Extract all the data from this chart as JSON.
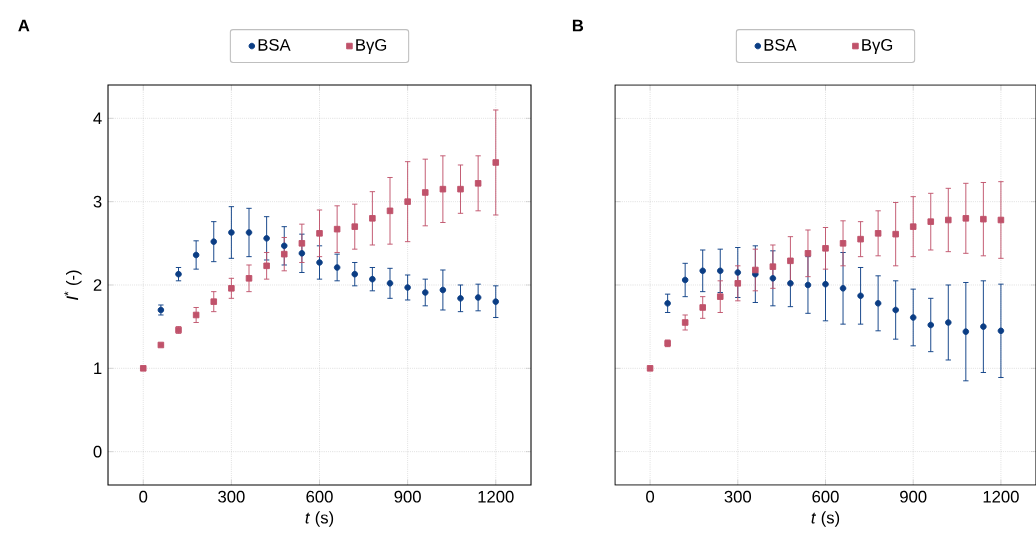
{
  "chart_data": [
    {
      "type": "scatter",
      "title": "A",
      "xlabel": "*t* (s)",
      "ylabel": "*I*$^{*}$ (-)",
      "x": [
        0,
        60,
        120,
        180,
        240,
        300,
        360,
        420,
        480,
        540,
        600,
        660,
        720,
        780,
        840,
        900,
        960,
        1020,
        1080,
        1140,
        1200
      ],
      "series": [
        {
          "name": "BSA",
          "color": "#0b3d84",
          "marker": "circle",
          "values": [
            null,
            1.7,
            2.13,
            2.36,
            2.52,
            2.63,
            2.63,
            2.56,
            2.47,
            2.38,
            2.27,
            2.21,
            2.13,
            2.07,
            2.02,
            1.97,
            1.91,
            1.94,
            1.84,
            1.85,
            1.8
          ],
          "errors": [
            null,
            0.06,
            0.08,
            0.17,
            0.24,
            0.31,
            0.29,
            0.26,
            0.23,
            0.23,
            0.2,
            0.16,
            0.14,
            0.14,
            0.18,
            0.15,
            0.16,
            0.24,
            0.16,
            0.16,
            0.19
          ]
        },
        {
          "name": "BγG",
          "color": "#c0526a",
          "marker": "square",
          "values": [
            1.0,
            1.28,
            1.46,
            1.64,
            1.8,
            1.96,
            2.08,
            2.23,
            2.37,
            2.5,
            2.62,
            2.67,
            2.7,
            2.8,
            2.89,
            3.0,
            3.11,
            3.15,
            3.15,
            3.22,
            3.47
          ],
          "errors": [
            null,
            null,
            0.04,
            0.09,
            0.12,
            0.12,
            0.16,
            0.16,
            0.2,
            0.23,
            0.28,
            0.28,
            0.27,
            0.32,
            0.4,
            0.48,
            0.4,
            0.4,
            0.29,
            0.33,
            0.63
          ]
        }
      ],
      "xlim": [
        -120,
        1320
      ],
      "xticks": [
        0,
        300,
        600,
        900,
        1200
      ],
      "ylim": [
        -0.4,
        4.4
      ],
      "yticks": [
        0,
        1,
        2,
        3,
        4
      ],
      "grid": true,
      "legend": "top",
      "line_style": "none"
    },
    {
      "type": "scatter",
      "title": "B",
      "xlabel": "*t* (s)",
      "x": [
        0,
        60,
        120,
        180,
        240,
        300,
        360,
        420,
        480,
        540,
        600,
        660,
        720,
        780,
        840,
        900,
        960,
        1020,
        1080,
        1140,
        1200
      ],
      "series": [
        {
          "name": "BSA",
          "color": "#0b3d84",
          "marker": "circle",
          "values": [
            null,
            1.78,
            2.06,
            2.17,
            2.17,
            2.15,
            2.13,
            2.08,
            2.02,
            2.0,
            2.01,
            1.96,
            1.87,
            1.78,
            1.7,
            1.61,
            1.52,
            1.55,
            1.44,
            1.5,
            1.45
          ],
          "errors": [
            null,
            0.11,
            0.2,
            0.25,
            0.26,
            0.3,
            0.34,
            0.33,
            0.28,
            0.34,
            0.44,
            0.43,
            0.34,
            0.33,
            0.35,
            0.34,
            0.32,
            0.45,
            0.59,
            0.55,
            0.56
          ]
        },
        {
          "name": "BγG",
          "color": "#c0526a",
          "marker": "square",
          "values": [
            1.0,
            1.3,
            1.55,
            1.73,
            1.86,
            2.02,
            2.18,
            2.22,
            2.29,
            2.38,
            2.44,
            2.5,
            2.55,
            2.62,
            2.61,
            2.7,
            2.76,
            2.78,
            2.8,
            2.79,
            2.78
          ],
          "errors": [
            null,
            0.04,
            0.09,
            0.13,
            0.19,
            0.21,
            0.25,
            0.26,
            0.29,
            0.28,
            0.25,
            0.27,
            0.21,
            0.27,
            0.38,
            0.36,
            0.34,
            0.38,
            0.42,
            0.44,
            0.46
          ]
        }
      ],
      "xlim": [
        -120,
        1320
      ],
      "xticks": [
        0,
        300,
        600,
        900,
        1200
      ],
      "ylim": [
        -0.4,
        4.4
      ],
      "yticks": [
        0,
        1,
        2,
        3,
        4
      ],
      "tick_labels": "x",
      "grid": true,
      "legend": "top",
      "line_style": "none"
    }
  ]
}
